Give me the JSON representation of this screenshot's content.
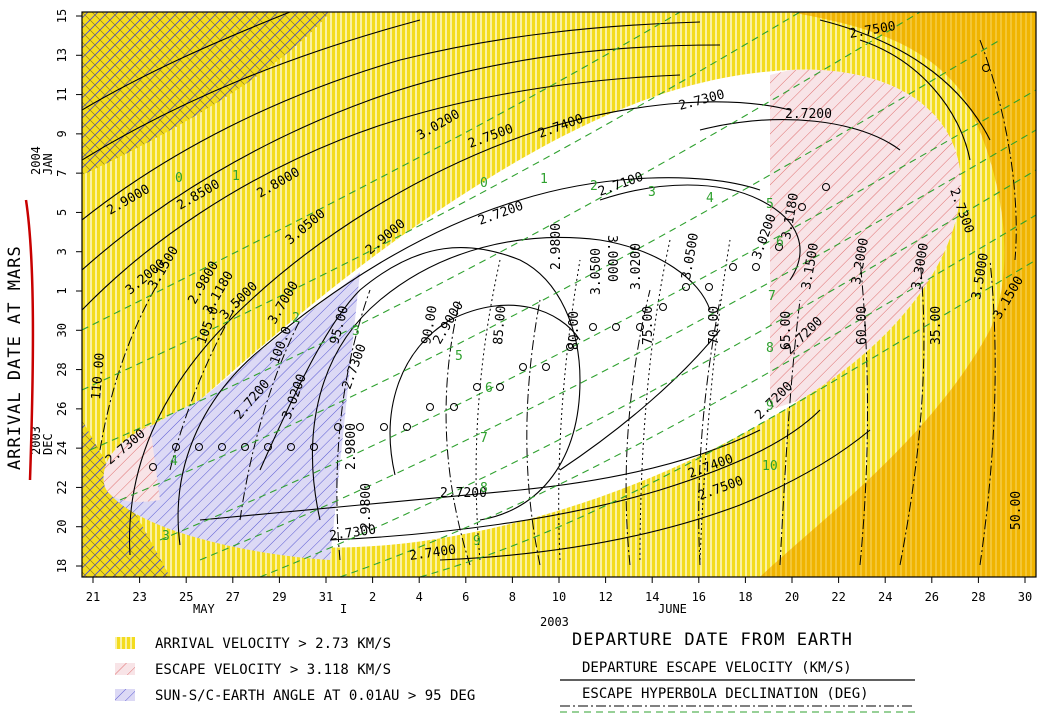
{
  "chart_data": {
    "type": "contour",
    "x_axis": {
      "ticks": [
        "21",
        "23",
        "25",
        "27",
        "29",
        "31",
        "2",
        "4",
        "6",
        "8",
        "10",
        "12",
        "14",
        "16",
        "18",
        "20",
        "22",
        "24",
        "26",
        "28",
        "30"
      ],
      "month_labels": [
        "MAY",
        "JUNE"
      ],
      "year_label": "2003",
      "title": "DEPARTURE DATE FROM EARTH"
    },
    "y_axis": {
      "ticks": [
        "18",
        "20",
        "22",
        "24",
        "26",
        "28",
        "30",
        "1",
        "3",
        "5",
        "7",
        "9",
        "11",
        "13",
        "15"
      ],
      "month_labels": [
        "2003 DEC",
        "2004 JAN"
      ],
      "title": "ARRIVAL DATE AT MARS"
    },
    "contours": {
      "arrival_velocity": [
        "2.7100",
        "2.7200",
        "2.7300",
        "2.7400",
        "2.7500",
        "2.8000",
        "2.8500",
        "2.9000",
        "2.9800",
        "3.0000",
        "3.0200",
        "3.0500",
        "3.1180",
        "3.1500",
        "3.2000",
        "3.3000",
        "3.5000",
        "3.7000"
      ],
      "escape_velocity": [
        "2.7100",
        "2.7200",
        "2.7300",
        "2.7400",
        "2.7500",
        "2.9000",
        "2.9800",
        "3.0000",
        "3.0200",
        "3.0500",
        "3.1180",
        "3.1500",
        "3.2000",
        "3.3000"
      ],
      "declination_deg": [
        "35.00",
        "50.00",
        "60.00",
        "65.00",
        "70.00",
        "75.00",
        "80.00",
        "85.00",
        "90.00",
        "95.00",
        "100.0",
        "105.0",
        "110.00"
      ],
      "sun_sc_earth_angle": [
        "0",
        "1",
        "2",
        "3",
        "4",
        "5",
        "6",
        "7",
        "8",
        "9",
        "10"
      ]
    },
    "legend": [
      {
        "label": "ARRIVAL VELOCITY > 2.73 KM/S",
        "color": "#f3dc1e",
        "pattern": "vertical-hatch"
      },
      {
        "label": "ESCAPE VELOCITY > 3.118 KM/S",
        "color": "#e06060",
        "pattern": "diagonal-hatch"
      },
      {
        "label": "SUN-S/C-EARTH ANGLE AT 0.01AU > 95 DEG",
        "color": "#3d3ddc",
        "pattern": "diagonal-hatch"
      }
    ],
    "line_key": [
      {
        "label": "DEPARTURE ESCAPE VELOCITY (KM/S)",
        "style": "solid"
      },
      {
        "label": "ESCAPE HYPERBOLA DECLINATION (DEG)",
        "style": "dash-dot"
      }
    ],
    "colors": {
      "yellow": "#f3dc1e",
      "orange": "#f0b400",
      "pink": "#f6dfe3",
      "lavender": "#d9d6f3",
      "green": "#2fa12f",
      "annotation_red": "#c80000"
    }
  }
}
